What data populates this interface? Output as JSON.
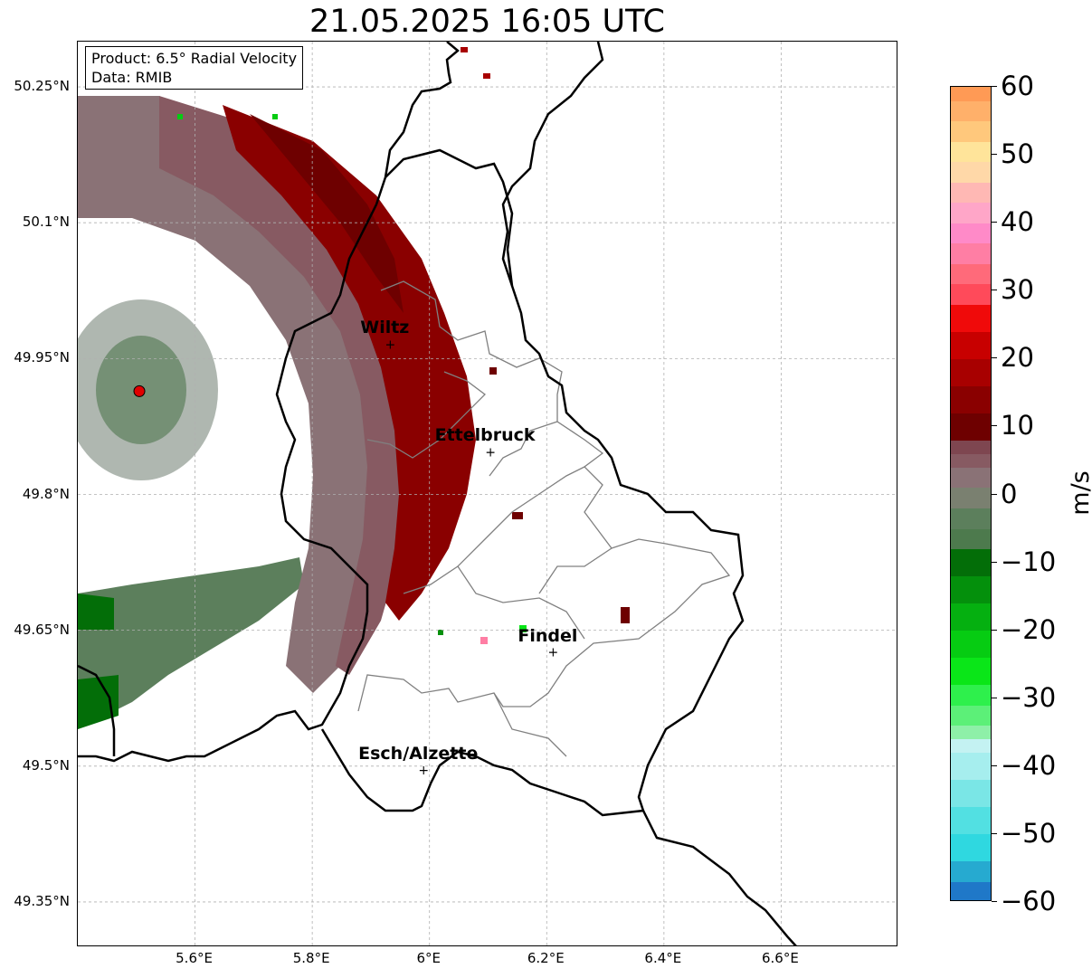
{
  "title": "21.05.2025 16:05 UTC",
  "info_box": {
    "product": "Product: 6.5° Radial Velocity",
    "data": "Data: RMIB"
  },
  "latitude_ticks": [
    {
      "value": 50.25,
      "label": "50.25°N"
    },
    {
      "value": 50.1,
      "label": "50.1°N"
    },
    {
      "value": 49.95,
      "label": "49.95°N"
    },
    {
      "value": 49.8,
      "label": "49.8°N"
    },
    {
      "value": 49.65,
      "label": "49.65°N"
    },
    {
      "value": 49.5,
      "label": "49.5°N"
    },
    {
      "value": 49.35,
      "label": "49.35°N"
    }
  ],
  "longitude_ticks": [
    {
      "value": 5.6,
      "label": "5.6°E"
    },
    {
      "value": 5.8,
      "label": "5.8°E"
    },
    {
      "value": 6.0,
      "label": "6°E"
    },
    {
      "value": 6.2,
      "label": "6.2°E"
    },
    {
      "value": 6.4,
      "label": "6.4°E"
    },
    {
      "value": 6.6,
      "label": "6.6°E"
    }
  ],
  "cities": [
    {
      "name": "Wiltz",
      "lon": 5.933,
      "lat": 49.966
    },
    {
      "name": "Ettelbruck",
      "lon": 6.104,
      "lat": 49.847
    },
    {
      "name": "Findel",
      "lon": 6.211,
      "lat": 49.626
    },
    {
      "name": "Esch/Alzette",
      "lon": 5.99,
      "lat": 49.496
    }
  ],
  "radar_site": {
    "lon": 5.505,
    "lat": 49.914,
    "color": "#e00000"
  },
  "colorbar": {
    "unit": "m/s",
    "min": -60,
    "max": 60,
    "ticks": [
      {
        "value": 60,
        "label": "60"
      },
      {
        "value": 50,
        "label": "50"
      },
      {
        "value": 40,
        "label": "40"
      },
      {
        "value": 30,
        "label": "30"
      },
      {
        "value": 20,
        "label": "20"
      },
      {
        "value": 10,
        "label": "10"
      },
      {
        "value": 0,
        "label": "0"
      },
      {
        "value": -10,
        "label": "−10"
      },
      {
        "value": -20,
        "label": "−20"
      },
      {
        "value": -30,
        "label": "−30"
      },
      {
        "value": -40,
        "label": "−40"
      },
      {
        "value": -50,
        "label": "−50"
      },
      {
        "value": -60,
        "label": "−60"
      }
    ],
    "stops": [
      {
        "from": -60,
        "to": -57,
        "color": "#1f78c8"
      },
      {
        "from": -57,
        "to": -54,
        "color": "#26aad0"
      },
      {
        "from": -54,
        "to": -50,
        "color": "#2fd8e0"
      },
      {
        "from": -50,
        "to": -46,
        "color": "#52e0e2"
      },
      {
        "from": -46,
        "to": -42,
        "color": "#7ae6e6"
      },
      {
        "from": -42,
        "to": -38,
        "color": "#a6eeee"
      },
      {
        "from": -38,
        "to": -36,
        "color": "#c4f2f2"
      },
      {
        "from": -36,
        "to": -34,
        "color": "#8ef0a8"
      },
      {
        "from": -34,
        "to": -31,
        "color": "#5cf078"
      },
      {
        "from": -31,
        "to": -28,
        "color": "#2ef04c"
      },
      {
        "from": -28,
        "to": -24,
        "color": "#0ae618"
      },
      {
        "from": -24,
        "to": -20,
        "color": "#06cc12"
      },
      {
        "from": -20,
        "to": -16,
        "color": "#05b010"
      },
      {
        "from": -16,
        "to": -12,
        "color": "#04900c"
      },
      {
        "from": -12,
        "to": -8,
        "color": "#036e08"
      },
      {
        "from": -8,
        "to": -5,
        "color": "#4d7a4d"
      },
      {
        "from": -5,
        "to": -2,
        "color": "#5c7f5c"
      },
      {
        "from": -2,
        "to": 1,
        "color": "#7a8070"
      },
      {
        "from": 1,
        "to": 4,
        "color": "#8a7276"
      },
      {
        "from": 4,
        "to": 6,
        "color": "#875a62"
      },
      {
        "from": 6,
        "to": 8,
        "color": "#7e4650"
      },
      {
        "from": 8,
        "to": 12,
        "color": "#6e0000"
      },
      {
        "from": 12,
        "to": 16,
        "color": "#8a0000"
      },
      {
        "from": 16,
        "to": 20,
        "color": "#a80000"
      },
      {
        "from": 20,
        "to": 24,
        "color": "#c80000"
      },
      {
        "from": 24,
        "to": 28,
        "color": "#f00a0a"
      },
      {
        "from": 28,
        "to": 31,
        "color": "#ff4a5a"
      },
      {
        "from": 31,
        "to": 34,
        "color": "#ff6a7a"
      },
      {
        "from": 34,
        "to": 37,
        "color": "#ff7ea4"
      },
      {
        "from": 37,
        "to": 40,
        "color": "#ff8ac8"
      },
      {
        "from": 40,
        "to": 43,
        "color": "#ffa6c8"
      },
      {
        "from": 43,
        "to": 46,
        "color": "#ffb8b4"
      },
      {
        "from": 46,
        "to": 49,
        "color": "#ffd8a8"
      },
      {
        "from": 49,
        "to": 52,
        "color": "#ffe49a"
      },
      {
        "from": 52,
        "to": 55,
        "color": "#ffc87c"
      },
      {
        "from": 55,
        "to": 58,
        "color": "#ffb06a"
      },
      {
        "from": 58,
        "to": 60,
        "color": "#ff9a55"
      }
    ]
  },
  "map_extent": {
    "lon_min": 5.4,
    "lon_max": 6.8,
    "lat_min": 49.3,
    "lat_max": 50.3
  },
  "colors": {
    "outer_ring": "#8a7276",
    "inner_ring": "#875a62",
    "core": "#8a0000",
    "core_dark": "#6e0000",
    "receding_green": "#5c7f5c",
    "dark_green": "#036e08",
    "border": "#000000",
    "canton_border": "#808080",
    "grid": "#b0b0b0"
  }
}
